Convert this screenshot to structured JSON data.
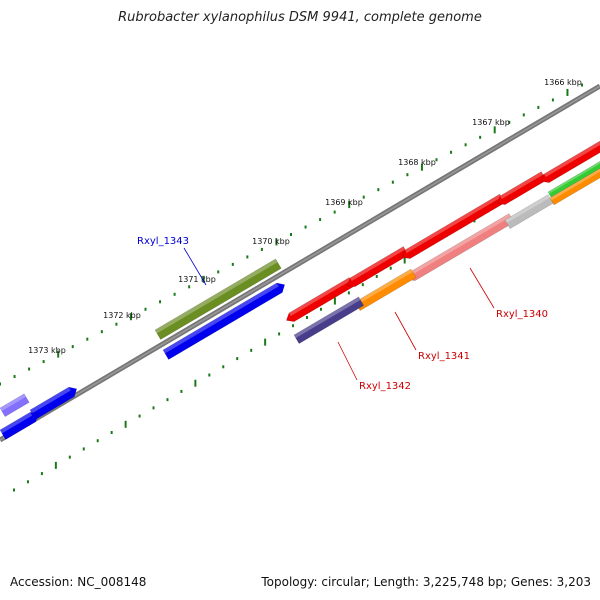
{
  "title": "Rubrobacter xylanophilus DSM 9941, complete genome",
  "footer": {
    "accession": "Accession: NC_008148",
    "summary": "Topology: circular; Length: 3,225,748 bp; Genes: 3,203"
  },
  "colors": {
    "backbone": "#777777",
    "ticks": "#1a7a1a",
    "red": "#ee0000",
    "orange": "#ff8c00",
    "green": "#33cc33",
    "gray": "#bbbbbb",
    "pink": "#f08080",
    "blue": "#0000ee",
    "olive": "#6b8e23",
    "slate": "#483d8b",
    "lavender": "#8470ff",
    "label_red": "#cc0000",
    "label_blue": "#0000cc"
  },
  "kbp_labels": [
    "1366 kbp",
    "1367 kbp",
    "1368 kbp",
    "1369 kbp",
    "1370 kbp",
    "1371 kbp",
    "1372 kbp",
    "1373 kbp"
  ],
  "gene_labels": [
    {
      "name": "Rxyl_1340",
      "color": "label_red"
    },
    {
      "name": "Rxyl_1341",
      "color": "label_red"
    },
    {
      "name": "Rxyl_1342",
      "color": "label_red"
    },
    {
      "name": "Rxyl_1343",
      "color": "label_blue"
    }
  ],
  "genes": [
    {
      "name": "red-gene-1",
      "color": "red",
      "track": "upper-forward"
    },
    {
      "name": "red-gene-2",
      "color": "red",
      "track": "upper-forward"
    },
    {
      "name": "red-gene-3",
      "color": "red",
      "track": "upper-forward"
    },
    {
      "name": "red-gene-4",
      "color": "red",
      "track": "upper-forward"
    },
    {
      "name": "red-gene-5",
      "color": "red",
      "track": "upper-forward"
    },
    {
      "name": "green-gene",
      "color": "green",
      "track": "upper-forward"
    },
    {
      "name": "pink-gene",
      "color": "pink",
      "track": "upper-reverse"
    },
    {
      "name": "gray-gene",
      "color": "gray",
      "track": "upper-reverse"
    },
    {
      "name": "orange-gene-1",
      "color": "orange",
      "track": "upper-reverse"
    },
    {
      "name": "orange-gene-2",
      "color": "orange",
      "track": "upper-reverse"
    },
    {
      "name": "slate-gene",
      "color": "slate",
      "track": "upper-reverse"
    },
    {
      "name": "olive-gene",
      "color": "olive",
      "track": "lower-forward"
    },
    {
      "name": "blue-gene-1",
      "color": "blue",
      "track": "lower-reverse"
    },
    {
      "name": "blue-gene-2",
      "color": "blue",
      "track": "lower-reverse"
    },
    {
      "name": "blue-gene-3",
      "color": "blue",
      "track": "lower-reverse"
    },
    {
      "name": "lavender-gene",
      "color": "lavender",
      "track": "lower-forward"
    }
  ]
}
